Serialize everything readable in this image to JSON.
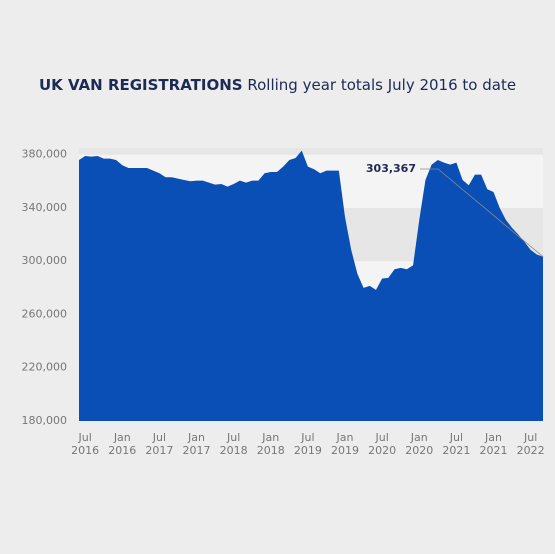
{
  "chart_data": {
    "type": "area",
    "title": "UK VAN REGISTRATIONS",
    "subtitle": "Rolling year totals July 2016 to date",
    "color": "#0a4fb5",
    "categories": [
      null,
      "Jul 2016",
      null,
      null,
      null,
      null,
      null,
      "Jan 2016",
      null,
      null,
      null,
      null,
      null,
      "Jul 2017",
      null,
      null,
      null,
      null,
      null,
      "Jan 2017",
      null,
      null,
      null,
      null,
      null,
      "Jul 2018",
      null,
      null,
      null,
      null,
      null,
      "Jan 2018",
      null,
      null,
      null,
      null,
      null,
      "Jul 2019",
      null,
      null,
      null,
      null,
      null,
      "Jan 2019",
      null,
      null,
      null,
      null,
      null,
      "Jul 2020",
      null,
      null,
      null,
      null,
      null,
      "Jan 2020",
      null,
      null,
      null,
      null,
      null,
      "Jul 2021",
      null,
      null,
      null,
      null,
      null,
      "Jan 2021",
      null,
      null,
      null,
      null,
      null,
      "Jul 2022",
      null,
      null
    ],
    "values": [
      376000,
      379000,
      378500,
      379000,
      377000,
      377000,
      376000,
      372000,
      370000,
      370000,
      370000,
      370000,
      368000,
      366000,
      363000,
      363000,
      362000,
      361000,
      360000,
      360500,
      360500,
      359000,
      357500,
      358000,
      356000,
      358000,
      360500,
      359000,
      360500,
      360500,
      366000,
      367000,
      367000,
      371000,
      376000,
      377500,
      383000,
      371000,
      369000,
      366000,
      368000,
      368000,
      368000,
      333000,
      308500,
      290500,
      280000,
      281500,
      278500,
      287000,
      287500,
      294000,
      295000,
      294000,
      297000,
      331000,
      361000,
      372500,
      376000,
      374000,
      372500,
      374000,
      361000,
      357000,
      365000,
      365000,
      354000,
      352000,
      340000,
      331000,
      325000,
      320000,
      314500,
      308500,
      305000,
      303367
    ],
    "annotation": "303,367",
    "ylim": [
      180000,
      385000
    ],
    "yticks": [
      {
        "value": 180000,
        "label": "180,000"
      },
      {
        "value": 220000,
        "label": "220,000"
      },
      {
        "value": 260000,
        "label": "260,000"
      },
      {
        "value": 300000,
        "label": "300,000"
      },
      {
        "value": 340000,
        "label": "340,000"
      },
      {
        "value": 380000,
        "label": "380,000"
      }
    ],
    "grid": true
  }
}
